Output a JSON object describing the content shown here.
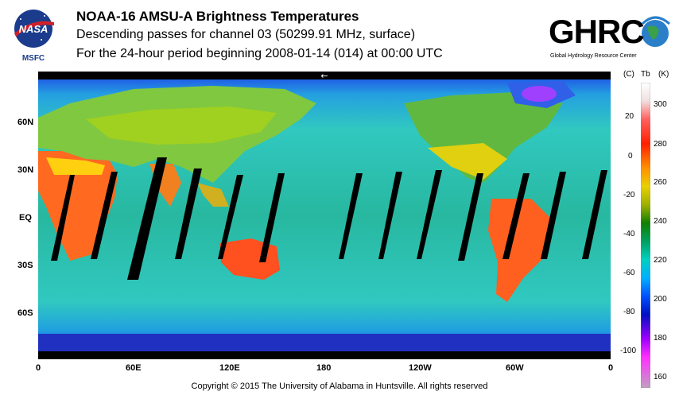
{
  "header": {
    "title": "NOAA-16 AMSU-A Brightness Temperatures",
    "subtitle1": "Descending passes for channel 03 (50299.91 MHz, surface)",
    "subtitle2": "For the 24-hour period beginning 2008-01-14 (014) at 00:00 UTC"
  },
  "logos": {
    "nasa_text": "NASA",
    "nasa_sub": "MSFC",
    "ghrc_text": "GHRC",
    "ghrc_sub": "Global Hydrology Resource Center"
  },
  "map": {
    "direction_arrow": "←",
    "lat_labels": [
      "60N",
      "30N",
      "EQ",
      "30S",
      "60S"
    ],
    "lon_labels": [
      "0",
      "60E",
      "120E",
      "180",
      "120W",
      "60W",
      "0"
    ]
  },
  "colorbar": {
    "header_left": "(C)",
    "header_mid": "Tb",
    "header_right": "(K)",
    "celsius_ticks": [
      "20",
      "0",
      "-20",
      "-40",
      "-60",
      "-80",
      "-100"
    ],
    "kelvin_ticks": [
      "300",
      "280",
      "260",
      "240",
      "220",
      "200",
      "180",
      "160"
    ],
    "colors": [
      "#ffffff",
      "#e8e8e8",
      "#ff2020",
      "#ff7000",
      "#ffd000",
      "#e0e000",
      "#208000",
      "#00a050",
      "#00d0c0",
      "#00a0ff",
      "#0030ff",
      "#0000a0",
      "#c000ff",
      "#ff40ff",
      "#c0a0c0"
    ]
  },
  "footer": {
    "copyright": "Copyright © 2015 The University of Alabama in Huntsville.  All rights reserved"
  }
}
